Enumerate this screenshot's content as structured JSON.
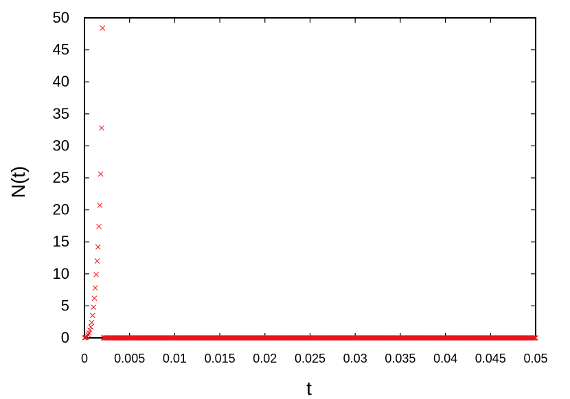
{
  "chart_data": {
    "type": "scatter",
    "title": "",
    "xlabel": "t",
    "ylabel": "N(t)",
    "xlim": [
      0,
      0.05
    ],
    "ylim": [
      0,
      50
    ],
    "xticks": [
      "0",
      "0.005",
      "0.01",
      "0.015",
      "0.02",
      "0.025",
      "0.03",
      "0.035",
      "0.04",
      "0.045",
      "0.05"
    ],
    "xtick_values": [
      0,
      0.005,
      0.01,
      0.015,
      0.02,
      0.025,
      0.03,
      0.035,
      0.04,
      0.045,
      0.05
    ],
    "yticks": [
      "0",
      "5",
      "10",
      "15",
      "20",
      "25",
      "30",
      "35",
      "40",
      "45",
      "50"
    ],
    "ytick_values": [
      0,
      5,
      10,
      15,
      20,
      25,
      30,
      35,
      40,
      45,
      50
    ],
    "grid": false,
    "legend": "none",
    "marker": "x",
    "marker_color": "#e8171d",
    "series": [
      {
        "points_growth": [
          [
            0.0,
            0.0
          ],
          [
            0.0001,
            0.05
          ],
          [
            0.0002,
            0.1
          ],
          [
            0.0003,
            0.2
          ],
          [
            0.0004,
            0.5
          ],
          [
            0.0005,
            0.8
          ],
          [
            0.0006,
            1.2
          ],
          [
            0.0007,
            1.7
          ],
          [
            0.0008,
            2.4
          ],
          [
            0.0009,
            3.5
          ],
          [
            0.001,
            4.8
          ],
          [
            0.0011,
            6.2
          ],
          [
            0.0012,
            7.8
          ],
          [
            0.0013,
            9.9
          ],
          [
            0.0014,
            12.0
          ],
          [
            0.0015,
            14.2
          ],
          [
            0.0016,
            17.4
          ],
          [
            0.0017,
            20.7
          ],
          [
            0.0018,
            25.6
          ],
          [
            0.0019,
            32.8
          ],
          [
            0.002,
            48.4
          ]
        ],
        "baseline_start": 0.0021,
        "baseline_end": 0.05,
        "baseline_step": 0.0001,
        "baseline_value": 0
      }
    ]
  }
}
